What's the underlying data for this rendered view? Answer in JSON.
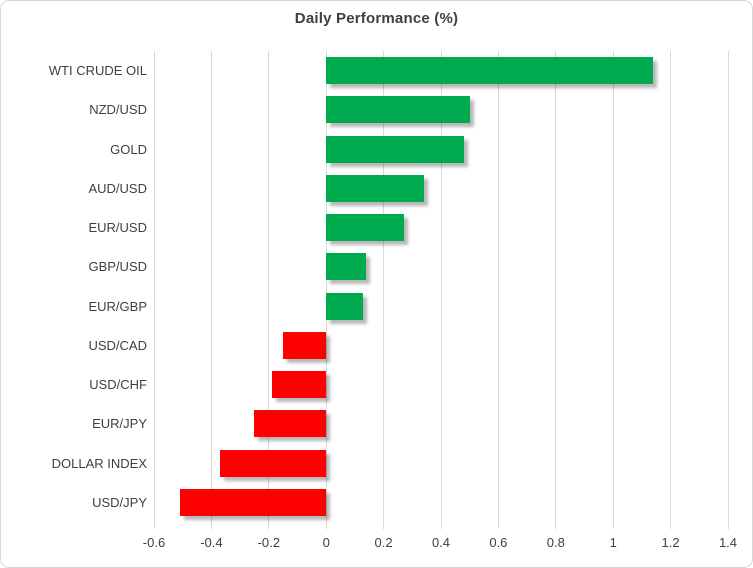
{
  "chart_data": {
    "type": "bar",
    "orientation": "horizontal",
    "title": "Daily Performance (%)",
    "categories": [
      "WTI CRUDE OIL",
      "NZD/USD",
      "GOLD",
      "AUD/USD",
      "EUR/USD",
      "GBP/USD",
      "EUR/GBP",
      "USD/CAD",
      "USD/CHF",
      "EUR/JPY",
      "DOLLAR INDEX",
      "USD/JPY"
    ],
    "values": [
      1.14,
      0.5,
      0.48,
      0.34,
      0.27,
      0.14,
      0.13,
      -0.15,
      -0.19,
      -0.25,
      -0.37,
      -0.51
    ],
    "xlim": [
      -0.6,
      1.4
    ],
    "xticks": [
      -0.6,
      -0.4,
      -0.2,
      0,
      0.2,
      0.4,
      0.6,
      0.8,
      1,
      1.2,
      1.4
    ],
    "xtick_labels": [
      "-0.6",
      "-0.4",
      "-0.2",
      "0",
      "0.2",
      "0.4",
      "0.6",
      "0.8",
      "1",
      "1.2",
      "1.4"
    ],
    "grid": true,
    "legend": false,
    "xlabel": "",
    "ylabel": "",
    "colors": {
      "positive": "#00ab50",
      "negative": "#ff0000",
      "gridline": "#d9d9d9",
      "text": "#404040",
      "title": "#3f3f3f",
      "border": "#d7d7d7"
    }
  }
}
